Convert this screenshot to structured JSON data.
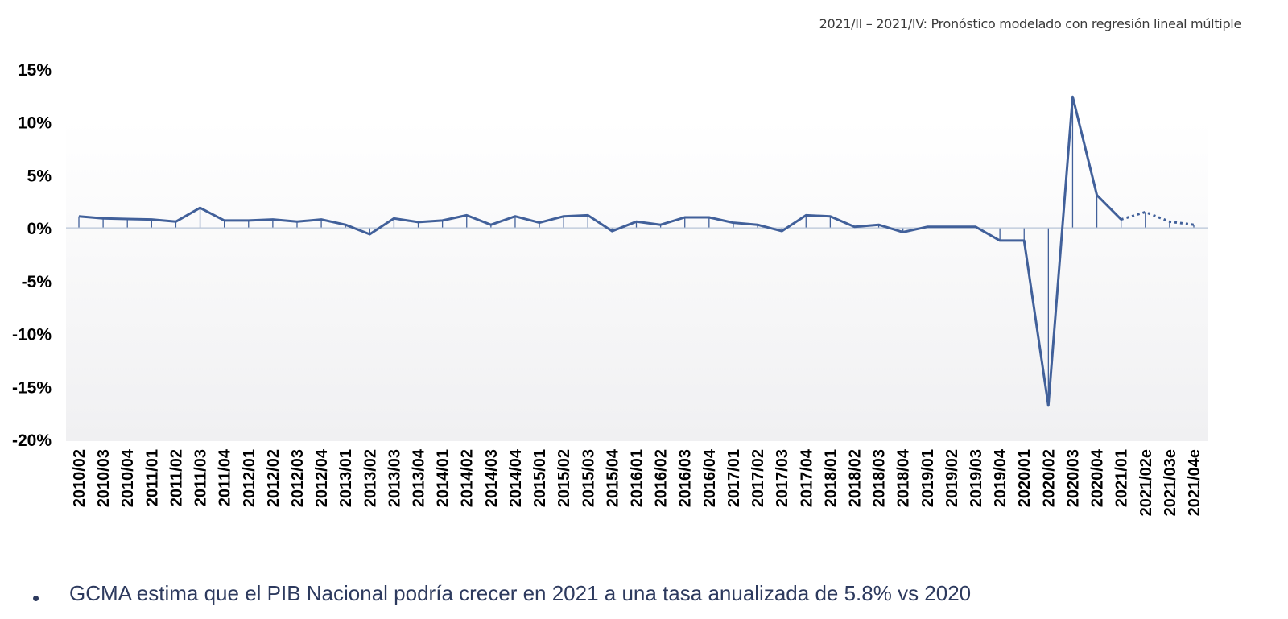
{
  "note": "2021/II – 2021/IV:  Pronóstico modelado  con regresión lineal múltiple",
  "bullet": {
    "symbol": "•",
    "text": "GCMA estima que el PIB Nacional podría crecer en 2021 a una tasa anualizada de 5.8% vs 2020"
  },
  "chart_data": {
    "type": "line",
    "categories": [
      "2010/02",
      "2010/03",
      "2010/04",
      "2011/01",
      "2011/02",
      "2011/03",
      "2011/04",
      "2012/01",
      "2012/02",
      "2012/03",
      "2012/04",
      "2013/01",
      "2013/02",
      "2013/03",
      "2013/04",
      "2014/01",
      "2014/02",
      "2014/03",
      "2014/04",
      "2015/01",
      "2015/02",
      "2015/03",
      "2015/04",
      "2016/01",
      "2016/02",
      "2016/03",
      "2016/04",
      "2017/01",
      "2017/02",
      "2017/03",
      "2017/04",
      "2018/01",
      "2018/02",
      "2018/03",
      "2018/04",
      "2019/01",
      "2019/02",
      "2019/03",
      "2019/04",
      "2020/01",
      "2020/02",
      "2020/03",
      "2020/04",
      "2021/01",
      "2021/02e",
      "2021/03e",
      "2021/04e"
    ],
    "series": [
      {
        "values": [
          1.1,
          0.9,
          0.85,
          0.8,
          0.6,
          1.9,
          0.7,
          0.7,
          0.8,
          0.6,
          0.8,
          0.3,
          -0.6,
          0.9,
          0.55,
          0.7,
          1.2,
          0.3,
          1.1,
          0.5,
          1.1,
          1.2,
          -0.3,
          0.6,
          0.3,
          1.0,
          1.0,
          0.5,
          0.3,
          -0.3,
          1.2,
          1.1,
          0.1,
          0.3,
          -0.4,
          0.1,
          0.1,
          0.1,
          -1.2,
          -1.2,
          -16.8,
          12.4,
          3.1,
          0.8,
          1.5,
          0.6,
          0.3
        ],
        "forecast_from_index": 43
      }
    ],
    "y_ticks": [
      15,
      10,
      5,
      0,
      -5,
      -10,
      -15,
      -20
    ],
    "y_tick_labels": [
      "15%",
      "10%",
      "5%",
      "0%",
      "-5%",
      "-10%",
      "-15%",
      "-20%"
    ],
    "ylim": [
      -20,
      15
    ],
    "drop_lines": true,
    "grid": false,
    "colors": {
      "line": "#41609a",
      "axis": "#b8c4d8",
      "drop": "#41609a"
    }
  }
}
